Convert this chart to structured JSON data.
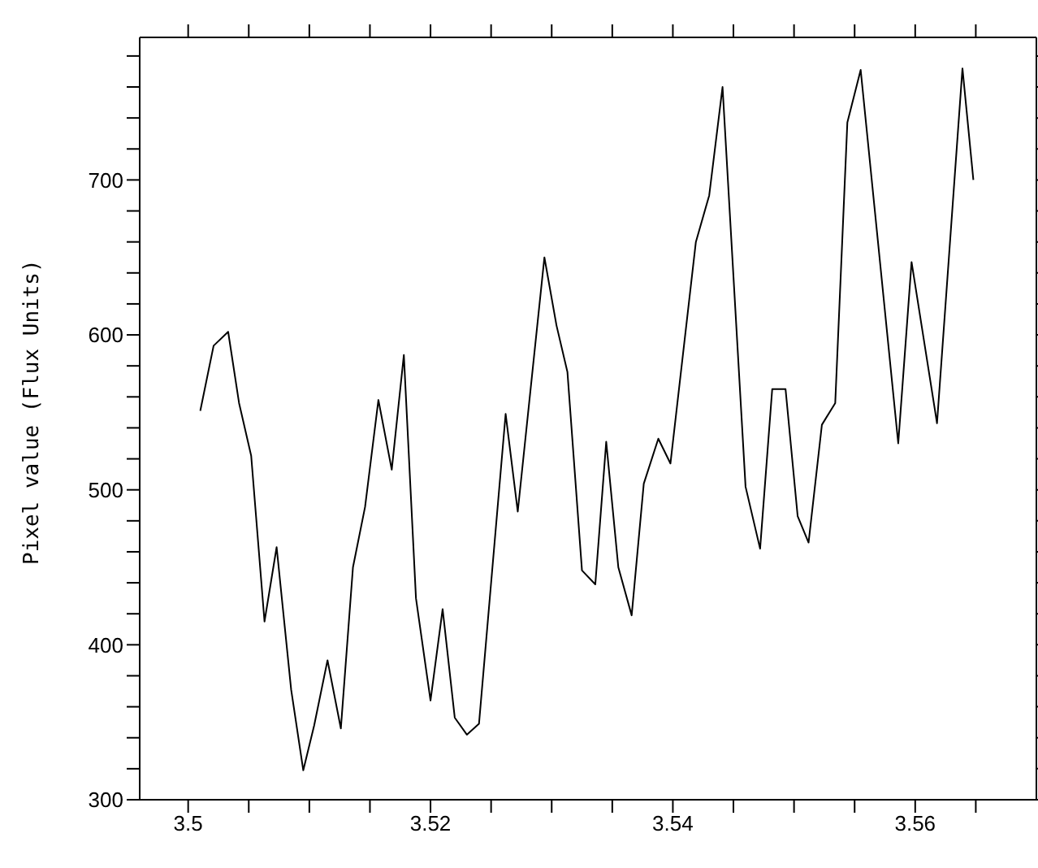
{
  "chart_data": {
    "type": "line",
    "ylabel": "Pixel value (Flux Units)",
    "x": [
      3.501,
      3.5021,
      3.5033,
      3.5042,
      3.5052,
      3.5063,
      3.5073,
      3.5085,
      3.5095,
      3.5104,
      3.5115,
      3.5126,
      3.5136,
      3.5146,
      3.5157,
      3.5168,
      3.5178,
      3.5188,
      3.52,
      3.521,
      3.522,
      3.523,
      3.524,
      3.5262,
      3.5272,
      3.5294,
      3.5304,
      3.5313,
      3.5325,
      3.5336,
      3.5345,
      3.5355,
      3.5366,
      3.5376,
      3.5388,
      3.5398,
      3.5419,
      3.543,
      3.5441,
      3.546,
      3.5472,
      3.5482,
      3.5493,
      3.5503,
      3.5512,
      3.5523,
      3.5534,
      3.5544,
      3.5555,
      3.5586,
      3.5597,
      3.5618,
      3.5639,
      3.5648
    ],
    "series": [
      {
        "color": "#000000",
        "values": [
          551,
          593,
          602,
          556,
          522,
          415,
          463,
          371,
          319,
          348,
          390,
          346,
          450,
          489,
          558,
          513,
          587,
          430,
          364,
          423,
          353,
          342,
          349,
          549,
          486,
          650,
          606,
          576,
          448,
          439,
          531,
          450,
          419,
          504,
          533,
          517,
          660,
          690,
          760,
          502,
          462,
          565,
          565,
          483,
          466,
          542,
          556,
          737,
          771,
          530,
          647,
          543,
          772,
          700
        ]
      }
    ],
    "xlim": [
      3.496,
      3.57
    ],
    "xticks": [
      3.5,
      {
        "value": 3.505,
        "label": null
      },
      {
        "value": 3.51,
        "label": null
      },
      {
        "value": 3.515,
        "label": null
      },
      3.52,
      {
        "value": 3.525,
        "label": null
      },
      {
        "value": 3.53,
        "label": null
      },
      {
        "value": 3.535,
        "label": null
      },
      3.54,
      {
        "value": 3.545,
        "label": null
      },
      {
        "value": 3.55,
        "label": null
      },
      {
        "value": 3.555,
        "label": null
      },
      3.56,
      {
        "value": 3.565,
        "label": null
      }
    ],
    "ylim": [
      300,
      792
    ],
    "yticks": [
      300,
      {
        "value": 320,
        "label": null
      },
      {
        "value": 340,
        "label": null
      },
      {
        "value": 360,
        "label": null
      },
      {
        "value": 380,
        "label": null
      },
      400,
      {
        "value": 420,
        "label": null
      },
      {
        "value": 440,
        "label": null
      },
      {
        "value": 460,
        "label": null
      },
      {
        "value": 480,
        "label": null
      },
      500,
      {
        "value": 520,
        "label": null
      },
      {
        "value": 540,
        "label": null
      },
      {
        "value": 560,
        "label": null
      },
      {
        "value": 580,
        "label": null
      },
      600,
      {
        "value": 620,
        "label": null
      },
      {
        "value": 640,
        "label": null
      },
      {
        "value": 660,
        "label": null
      },
      {
        "value": 680,
        "label": null
      },
      700,
      {
        "value": 720,
        "label": null
      },
      {
        "value": 740,
        "label": null
      },
      {
        "value": 760,
        "label": null
      },
      {
        "value": 780,
        "label": null
      }
    ],
    "marker": "none",
    "line_style": "solid"
  }
}
